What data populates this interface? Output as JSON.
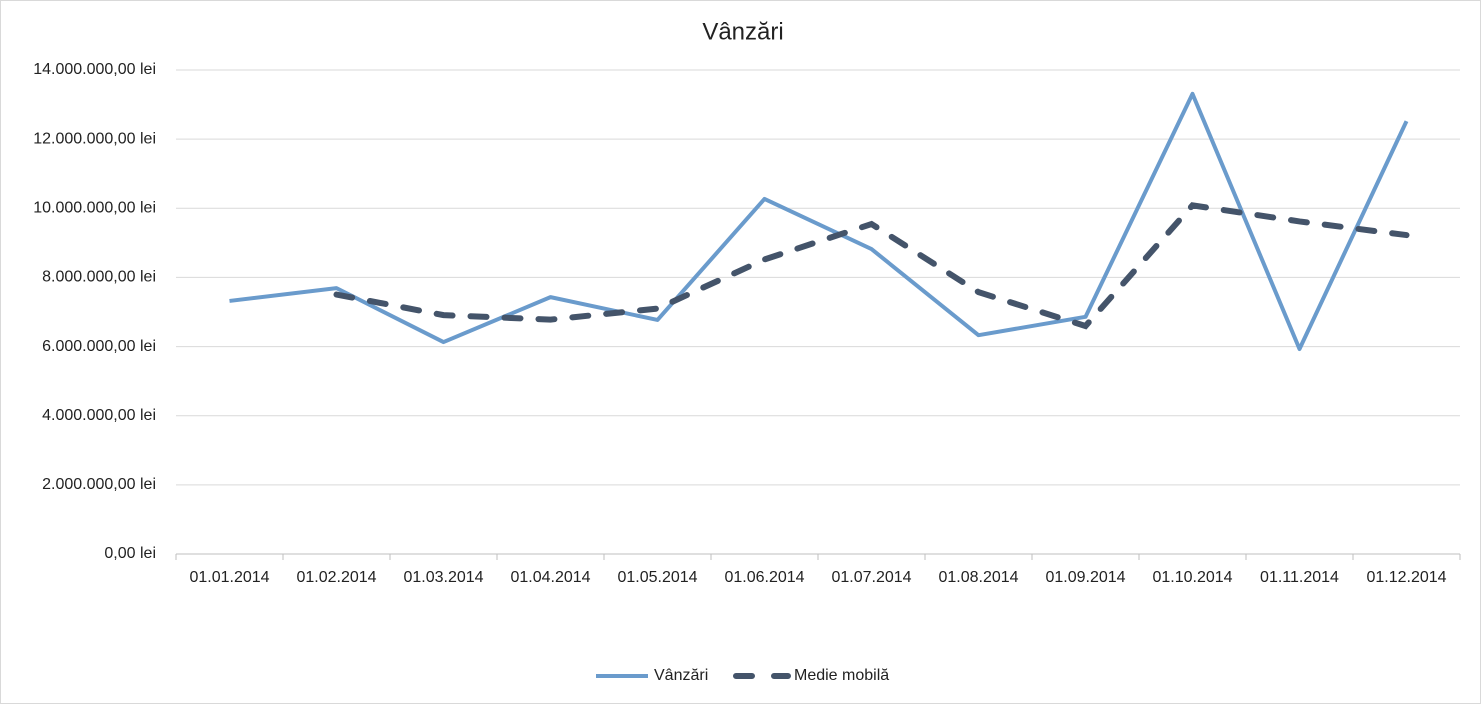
{
  "chart_data": {
    "type": "line",
    "title": "Vânzări",
    "categories": [
      "01.01.2014",
      "01.02.2014",
      "01.03.2014",
      "01.04.2014",
      "01.05.2014",
      "01.06.2014",
      "01.07.2014",
      "01.08.2014",
      "01.09.2014",
      "01.10.2014",
      "01.11.2014",
      "01.12.2014"
    ],
    "series": [
      {
        "name": "Vânzări",
        "color": "#6a9bcc",
        "style": "solid",
        "values": [
          7320000,
          7690000,
          6130000,
          7430000,
          6770000,
          10270000,
          8820000,
          6330000,
          6860000,
          13310000,
          5930000,
          12520000
        ]
      },
      {
        "name": "Medie mobilă",
        "color": "#44546a",
        "style": "dashed",
        "values": [
          null,
          7505000,
          6910000,
          6780000,
          7100000,
          8520000,
          9545000,
          7575000,
          6595000,
          10085000,
          9620000,
          9225000
        ]
      }
    ],
    "ylim": [
      0,
      14000000
    ],
    "yticks": [
      {
        "value": 0,
        "label": "0,00 lei"
      },
      {
        "value": 2000000,
        "label": "2.000.000,00 lei"
      },
      {
        "value": 4000000,
        "label": "4.000.000,00 lei"
      },
      {
        "value": 6000000,
        "label": "6.000.000,00 lei"
      },
      {
        "value": 8000000,
        "label": "8.000.000,00 lei"
      },
      {
        "value": 10000000,
        "label": "10.000.000,00 lei"
      },
      {
        "value": 12000000,
        "label": "12.000.000,00 lei"
      },
      {
        "value": 14000000,
        "label": "14.000.000,00 lei"
      }
    ],
    "grid": true,
    "legend": "bottom"
  }
}
